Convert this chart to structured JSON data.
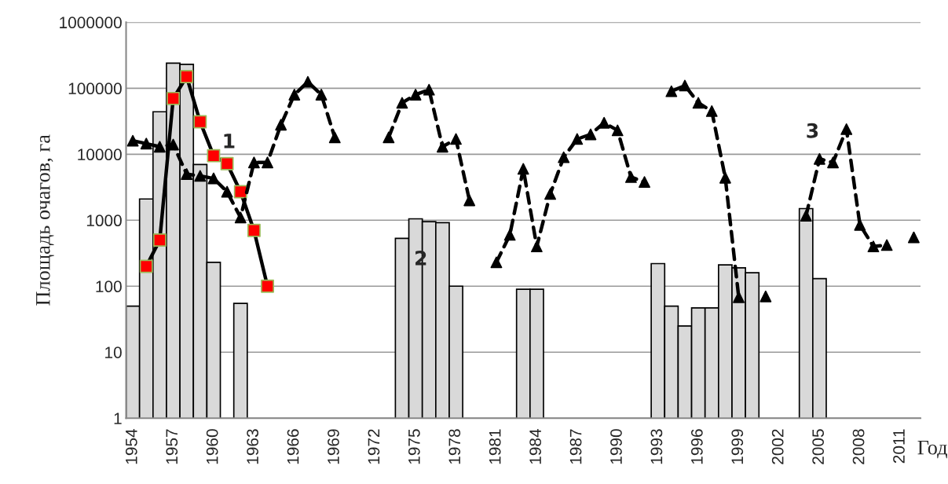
{
  "chart_data": {
    "type": "bar",
    "xlabel": "Год",
    "ylabel": "Площадь очагов, га",
    "categories": [
      "1954",
      null,
      null,
      "1957",
      null,
      null,
      "1960",
      null,
      null,
      "1963",
      null,
      null,
      "1966",
      null,
      null,
      "1969",
      null,
      null,
      "1972",
      null,
      null,
      "1975",
      null,
      null,
      "1978",
      null,
      null,
      "1981",
      null,
      null,
      "1984",
      null,
      null,
      "1987",
      null,
      null,
      "1990",
      null,
      null,
      "1993",
      null,
      null,
      "1996",
      null,
      null,
      "1999",
      null,
      null,
      "2002",
      null,
      null,
      "2005",
      null,
      null,
      "2008",
      null,
      null,
      "2011",
      null
    ],
    "series": [
      {
        "color": "#d9d9d9",
        "values": [
          50,
          2100,
          44000,
          240000,
          230000,
          7000,
          230,
          null,
          55,
          null,
          null,
          null,
          null,
          null,
          null,
          null,
          null,
          null,
          null,
          null,
          530,
          1050,
          950,
          920,
          100,
          null,
          null,
          null,
          null,
          90,
          90,
          null,
          null,
          null,
          null,
          null,
          null,
          null,
          null,
          220,
          50,
          25,
          47,
          47,
          210,
          190,
          160,
          null,
          null,
          null,
          1500,
          130,
          null,
          null,
          null,
          null,
          null,
          null,
          null
        ]
      },
      {
        "type": "line",
        "color": "#000000",
        "marker": "square",
        "colors": [
          null,
          "#ff0000",
          "#ff0000",
          "#ff0000",
          "#ff0000",
          "#ff0000",
          "#ff0000",
          "#ff0000",
          "#ff0000",
          "#ff0000",
          "#ff0000",
          null,
          null,
          null,
          null,
          null,
          null,
          null,
          null,
          null,
          null,
          null,
          null,
          null,
          null,
          null,
          null,
          null,
          null,
          null,
          null,
          null,
          null,
          null,
          null,
          null,
          null,
          null,
          null,
          null,
          null,
          null,
          null,
          null,
          null,
          null,
          null,
          null,
          null,
          null,
          null,
          null,
          null,
          null,
          null,
          null,
          null,
          null,
          null
        ],
        "line_style": "solid",
        "values": [
          null,
          200,
          500,
          70000,
          150000,
          31000,
          9500,
          7200,
          2700,
          700,
          100,
          null,
          null,
          null,
          null,
          null,
          null,
          null,
          null,
          null,
          null,
          null,
          null,
          null,
          null,
          null,
          null,
          null,
          null,
          null,
          null,
          null,
          null,
          null,
          null,
          null,
          null,
          null,
          null,
          null,
          null,
          null,
          null,
          null,
          null,
          null,
          null,
          null,
          null,
          null,
          null,
          null,
          null,
          null,
          null,
          null,
          null,
          null,
          null
        ]
      },
      {
        "type": "line",
        "color": "#000000",
        "marker": "triangle",
        "line_style": "dashed",
        "values": [
          16000,
          14500,
          13000,
          14000,
          5000,
          4700,
          4300,
          2700,
          1100,
          7500,
          7500,
          28000,
          80000,
          125000,
          80000,
          18000,
          null,
          null,
          null,
          18000,
          60000,
          80000,
          95000,
          13000,
          17000,
          2000,
          null,
          230,
          600,
          6000,
          400,
          2500,
          9000,
          17000,
          20000,
          30000,
          23000,
          4500,
          3800,
          null,
          90000,
          110000,
          60000,
          45000,
          4400,
          68,
          null,
          70,
          null,
          null,
          1170,
          8500,
          7500,
          24000,
          850,
          400,
          420,
          null,
          550
        ]
      }
    ],
    "annotations": [
      {
        "text": "1",
        "x": "1960",
        "y": 15000
      },
      "2",
      "3"
    ],
    "log": "y",
    "ylim": [
      1,
      1000000
    ],
    "yticks": [
      1,
      10,
      100,
      1000,
      10000,
      100000,
      1000000
    ],
    "grid": "y",
    "legend": false
  }
}
